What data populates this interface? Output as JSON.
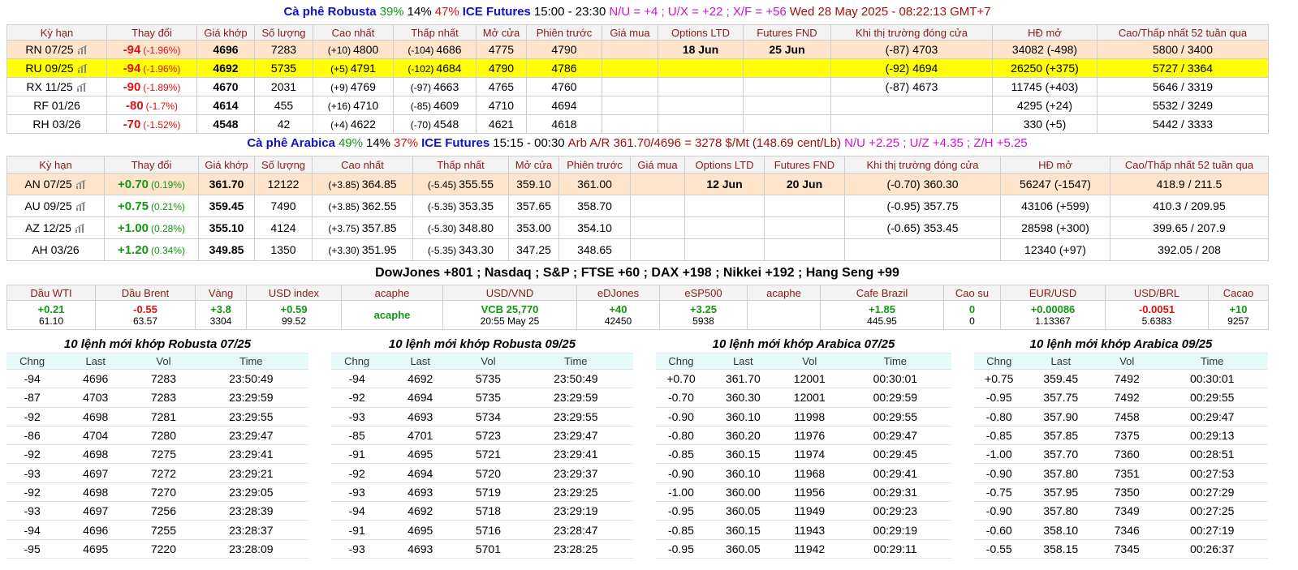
{
  "robusta_title": {
    "parts": [
      {
        "text": "Cà phê Robusta",
        "color": "#1010d0",
        "weight": "bold"
      },
      {
        "text": "39%",
        "color": "#119911"
      },
      {
        "text": "14%",
        "color": "#000000"
      },
      {
        "text": "47%",
        "color": "#e01010"
      },
      {
        "text": "ICE Futures",
        "color": "#1010d0",
        "weight": "bold"
      },
      {
        "text": "15:00 - 23:30",
        "color": "#000000"
      },
      {
        "text": "N/U = +4 ; U/X = +22 ; X/F = +56",
        "color": "#d010d0"
      },
      {
        "text": "Wed 28 May 2025 - 08:22:13 GMT+7",
        "color": "#a01010"
      }
    ]
  },
  "futures_columns": [
    "Kỳ hạn",
    "Thay đổi",
    "Giá khớp",
    "Số lượng",
    "Cao nhất",
    "Thấp nhất",
    "Mở cửa",
    "Phiên trước",
    "Giá mua",
    "Options LTD",
    "Futures FND",
    "Khi thị trường đóng cửa",
    "HĐ mở",
    "Cao/Thấp nhất 52 tuần qua"
  ],
  "robusta": {
    "rows": [
      {
        "term": "RN 07/25",
        "icon": true,
        "highlight": "#fde4cb",
        "change": "-94",
        "change_pct": "(-1.96%)",
        "last": "4696",
        "volume": "7283",
        "high_chg": "(+10)",
        "high": "4800",
        "low_chg": "(-104)",
        "low": "4686",
        "open": "4775",
        "prev": "4790",
        "options_ltd": "18 Jun",
        "futures_fnd": "25 Jun",
        "close_chg": "(-87)",
        "close": "4703",
        "open_interest": "34082 (-498)",
        "range": "5800 / 3400"
      },
      {
        "term": "RU 09/25",
        "icon": true,
        "highlight": "#ffff00",
        "change": "-94",
        "change_pct": "(-1.96%)",
        "last": "4692",
        "volume": "5735",
        "high_chg": "(+5)",
        "high": "4791",
        "low_chg": "(-102)",
        "low": "4684",
        "open": "4790",
        "prev": "4786",
        "close_chg": "(-92)",
        "close": "4694",
        "open_interest": "26250 (+375)",
        "range": "5727 / 3364"
      },
      {
        "term": "RX 11/25",
        "icon": true,
        "change": "-90",
        "change_pct": "(-1.89%)",
        "last": "4670",
        "volume": "2031",
        "high_chg": "(+9)",
        "high": "4769",
        "low_chg": "(-97)",
        "low": "4663",
        "open": "4765",
        "prev": "4760",
        "close_chg": "(-87)",
        "close": "4673",
        "open_interest": "11745 (+403)",
        "range": "5646 / 3319"
      },
      {
        "term": "RF 01/26",
        "change": "-80",
        "change_pct": "(-1.7%)",
        "last": "4614",
        "volume": "455",
        "high_chg": "(+16)",
        "high": "4710",
        "low_chg": "(-85)",
        "low": "4609",
        "open": "4710",
        "prev": "4694",
        "open_interest": "4295 (+24)",
        "range": "5532 / 3249"
      },
      {
        "term": "RH 03/26",
        "change": "-70",
        "change_pct": "(-1.52%)",
        "last": "4548",
        "volume": "42",
        "high_chg": "(+4)",
        "high": "4622",
        "low_chg": "(-70)",
        "low": "4548",
        "open": "4621",
        "prev": "4618",
        "open_interest": "330 (+5)",
        "range": "5442 / 3333"
      }
    ]
  },
  "arabica_title": {
    "parts": [
      {
        "text": "Cà phê Arabica",
        "color": "#1010d0",
        "weight": "bold"
      },
      {
        "text": "49%",
        "color": "#119911"
      },
      {
        "text": "14%",
        "color": "#000000"
      },
      {
        "text": "37%",
        "color": "#e01010"
      },
      {
        "text": "ICE Futures",
        "color": "#1010d0",
        "weight": "bold"
      },
      {
        "text": "15:15 - 00:30",
        "color": "#000000"
      },
      {
        "text": "Arb A/R 361.70/4696 = 3278 $/Mt (148.69 cent/Lb)",
        "color": "#a01010"
      },
      {
        "text": "N/U +2.25 ; U/Z +4.35 ; Z/H +5.25",
        "color": "#d010d0"
      }
    ]
  },
  "arabica": {
    "rows": [
      {
        "term": "AN 07/25",
        "icon": true,
        "highlight": "#fde4cb",
        "change": "+0.70",
        "change_pct": "(0.19%)",
        "last": "361.70",
        "volume": "12122",
        "high_chg": "(+3.85)",
        "high": "364.85",
        "low_chg": "(-5.45)",
        "low": "355.55",
        "open": "359.10",
        "prev": "361.00",
        "options_ltd": "12 Jun",
        "futures_fnd": "20 Jun",
        "close_chg": "(-0.70)",
        "close": "360.30",
        "open_interest": "56247 (-1547)",
        "range": "418.9 / 211.5"
      },
      {
        "term": "AU 09/25",
        "icon": true,
        "change": "+0.75",
        "change_pct": "(0.21%)",
        "last": "359.45",
        "volume": "7490",
        "high_chg": "(+3.85)",
        "high": "362.55",
        "low_chg": "(-5.35)",
        "low": "353.35",
        "open": "357.65",
        "prev": "358.70",
        "close_chg": "(-0.95)",
        "close": "357.75",
        "open_interest": "43106 (+599)",
        "range": "410.3 / 209.95"
      },
      {
        "term": "AZ 12/25",
        "icon": true,
        "change": "+1.00",
        "change_pct": "(0.28%)",
        "last": "355.10",
        "volume": "4124",
        "high_chg": "(+3.75)",
        "high": "357.85",
        "low_chg": "(-5.30)",
        "low": "348.80",
        "open": "353.00",
        "prev": "354.10",
        "close_chg": "(-0.65)",
        "close": "353.45",
        "open_interest": "28598 (+300)",
        "range": "399.65 / 207.9"
      },
      {
        "term": "AH 03/26",
        "change": "+1.20",
        "change_pct": "(0.34%)",
        "last": "349.85",
        "volume": "1350",
        "high_chg": "(+3.30)",
        "high": "351.95",
        "low_chg": "(-5.35)",
        "low": "343.30",
        "open": "347.25",
        "prev": "348.65",
        "open_interest": "12340 (+97)",
        "range": "392.05 / 208"
      }
    ]
  },
  "indices": "DowJones +801 ; Nasdaq ; S&P ; FTSE +60 ; DAX +198 ; Nikkei +192 ; Hang Seng +99",
  "markets": {
    "headers": [
      "Dầu WTI",
      "Dầu Brent",
      "Vàng",
      "USD index",
      "acaphe",
      "USD/VND",
      "eDJones",
      "eSP500",
      "acaphe",
      "Cafe Brazil",
      "Cao su",
      "EUR/USD",
      "USD/BRL",
      "Cacao"
    ],
    "values": [
      {
        "change": "+0.21",
        "price": "61.10"
      },
      {
        "change": "-0.55",
        "price": "63.57"
      },
      {
        "change": "+3.8",
        "price": "3304"
      },
      {
        "change": "+0.59",
        "price": "99.52"
      },
      {
        "change": "acaphe"
      },
      {
        "change": "VCB 25,770",
        "price": "20:55 May 25"
      },
      {
        "change": "+40",
        "price": "42450"
      },
      {
        "change": "+3.25",
        "price": "5938"
      },
      {},
      {
        "change": "+1.85",
        "price": "445.95"
      },
      {
        "change": "0",
        "price": "0"
      },
      {
        "change": "+0.00086",
        "price": "1.13367"
      },
      {
        "change": "-0.0051",
        "price": "5.6383"
      },
      {
        "change": "+10",
        "price": "9257"
      }
    ]
  },
  "trade_headers": [
    "Chng",
    "Last",
    "Vol",
    "Time"
  ],
  "trades": [
    {
      "title": "10 lệnh mới khớp Robusta 07/25",
      "rows": [
        [
          "-94",
          "4696",
          "7283",
          "23:50:49"
        ],
        [
          "-87",
          "4703",
          "7283",
          "23:29:59"
        ],
        [
          "-92",
          "4698",
          "7281",
          "23:29:55"
        ],
        [
          "-86",
          "4704",
          "7280",
          "23:29:47"
        ],
        [
          "-92",
          "4698",
          "7275",
          "23:29:41"
        ],
        [
          "-93",
          "4697",
          "7272",
          "23:29:21"
        ],
        [
          "-92",
          "4698",
          "7270",
          "23:29:05"
        ],
        [
          "-93",
          "4697",
          "7256",
          "23:28:39"
        ],
        [
          "-94",
          "4696",
          "7255",
          "23:28:37"
        ],
        [
          "-95",
          "4695",
          "7220",
          "23:28:09"
        ]
      ]
    },
    {
      "title": "10 lệnh mới khớp Robusta 09/25",
      "rows": [
        [
          "-94",
          "4692",
          "5735",
          "23:50:49"
        ],
        [
          "-92",
          "4694",
          "5735",
          "23:29:59"
        ],
        [
          "-93",
          "4693",
          "5734",
          "23:29:55"
        ],
        [
          "-85",
          "4701",
          "5723",
          "23:29:47"
        ],
        [
          "-91",
          "4695",
          "5721",
          "23:29:41"
        ],
        [
          "-92",
          "4694",
          "5720",
          "23:29:37"
        ],
        [
          "-93",
          "4693",
          "5719",
          "23:29:25"
        ],
        [
          "-94",
          "4692",
          "5718",
          "23:29:19"
        ],
        [
          "-91",
          "4695",
          "5716",
          "23:28:47"
        ],
        [
          "-93",
          "4693",
          "5701",
          "23:28:25"
        ]
      ]
    },
    {
      "title": "10 lệnh mới khớp Arabica 07/25",
      "rows": [
        [
          "+0.70",
          "361.70",
          "12001",
          "00:30:01"
        ],
        [
          "-0.70",
          "360.30",
          "12001",
          "00:29:59"
        ],
        [
          "-0.90",
          "360.10",
          "11998",
          "00:29:55"
        ],
        [
          "-0.80",
          "360.20",
          "11976",
          "00:29:47"
        ],
        [
          "-0.85",
          "360.15",
          "11974",
          "00:29:45"
        ],
        [
          "-0.90",
          "360.10",
          "11968",
          "00:29:41"
        ],
        [
          "-1.00",
          "360.00",
          "11956",
          "00:29:31"
        ],
        [
          "-0.95",
          "360.05",
          "11949",
          "00:29:23"
        ],
        [
          "-0.85",
          "360.15",
          "11943",
          "00:29:19"
        ],
        [
          "-0.95",
          "360.05",
          "11942",
          "00:29:11"
        ]
      ]
    },
    {
      "title": "10 lệnh mới khớp Arabica 09/25",
      "rows": [
        [
          "+0.75",
          "359.45",
          "7492",
          "00:30:01"
        ],
        [
          "-0.95",
          "357.75",
          "7492",
          "00:29:55"
        ],
        [
          "-0.80",
          "357.90",
          "7458",
          "00:29:47"
        ],
        [
          "-0.85",
          "357.85",
          "7375",
          "00:29:13"
        ],
        [
          "-1.00",
          "357.70",
          "7360",
          "00:28:51"
        ],
        [
          "-0.90",
          "357.80",
          "7351",
          "00:27:53"
        ],
        [
          "-0.75",
          "357.95",
          "7350",
          "00:27:29"
        ],
        [
          "-0.90",
          "357.80",
          "7349",
          "00:27:25"
        ],
        [
          "-0.60",
          "358.10",
          "7346",
          "00:27:19"
        ],
        [
          "-0.55",
          "358.15",
          "7345",
          "00:26:37"
        ]
      ]
    }
  ]
}
